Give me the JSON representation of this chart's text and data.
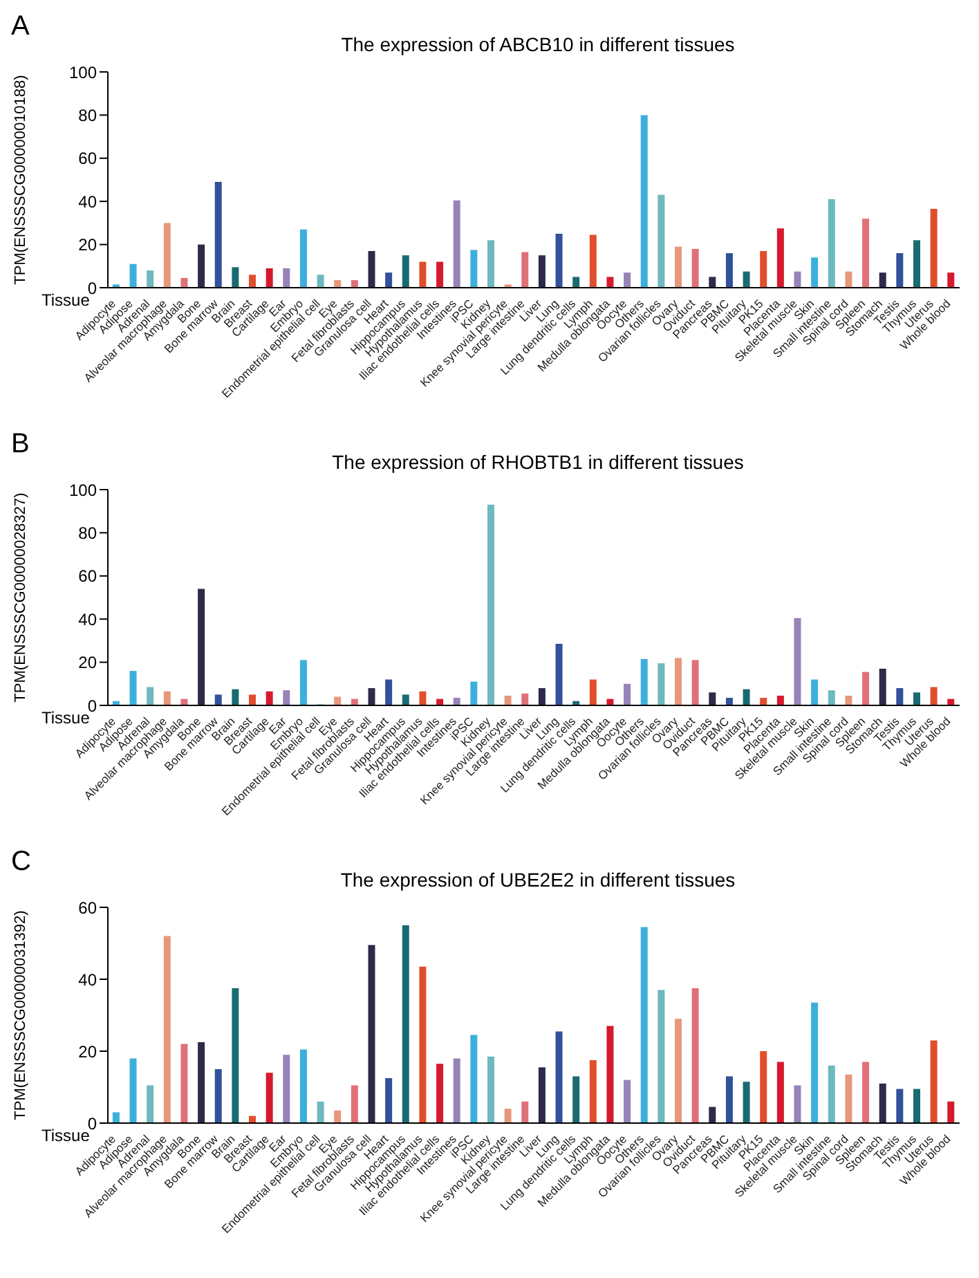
{
  "chart_data": [
    {
      "type": "bar",
      "title": "The expression of ABCB10 in different tissues",
      "xlabel": "Tissue",
      "ylabel": "TPM(ENSSSCG00000010188)",
      "annotations": [
        "A"
      ],
      "categories": [
        "Adipocyte",
        "Adipose",
        "Adrenal",
        "Alveolar macrophage",
        "Amygdala",
        "Bone",
        "Bone marrow",
        "Brain",
        "Breast",
        "Cartilage",
        "Ear",
        "Embryo",
        "Endometrial epithelial cell",
        "Eye",
        "Fetal fibroblasts",
        "Granulosa cell",
        "Heart",
        "Hippocampus",
        "Hypothalamus",
        "Iliac endothelial cells",
        "Intestines",
        "iPSC",
        "Kidney",
        "Knee synovial pericyte",
        "Large intestine",
        "Liver",
        "Lung",
        "Lung dendritic cells",
        "Lymph",
        "Medulla oblongata",
        "Oocyte",
        "Others",
        "Ovarian follicles",
        "Ovary",
        "Oviduct",
        "Pancreas",
        "PBMC",
        "Pituitary",
        "PK15",
        "Placenta",
        "Skeletal muscle",
        "Skin",
        "Small intestine",
        "Spinal cord",
        "Spleen",
        "Stomach",
        "Testis",
        "Thymus",
        "Uterus",
        "Whole blood"
      ],
      "values": [
        1.5,
        11,
        8,
        30,
        4.5,
        20,
        49,
        9.5,
        6,
        9,
        9,
        27,
        6,
        3.5,
        3.5,
        17,
        7,
        15,
        12,
        12,
        40.5,
        17.5,
        22,
        1.5,
        16.5,
        15,
        25,
        5,
        24.5,
        5,
        7,
        80,
        43,
        19,
        18,
        5,
        16,
        7.5,
        17,
        27.5,
        7.5,
        14,
        41,
        7.5,
        32,
        7,
        16,
        22,
        36.5,
        7
      ],
      "colors": [
        "#3cb0dc",
        "#3cb0dc",
        "#6db9bf",
        "#e8977a",
        "#e07078",
        "#2d2a4a",
        "#33509a",
        "#1a6b70",
        "#e04e2c",
        "#d7192d",
        "#9683b8",
        "#3cb0dc",
        "#6db9bf",
        "#e8977a",
        "#e07078",
        "#2d2a4a",
        "#33509a",
        "#1a6b70",
        "#e04e2c",
        "#d7192d",
        "#9683b8",
        "#3cb0dc",
        "#6db9bf",
        "#e8977a",
        "#e07078",
        "#2d2a4a",
        "#33509a",
        "#1a6b70",
        "#e04e2c",
        "#d7192d",
        "#9683b8",
        "#3cb0dc",
        "#6db9bf",
        "#e8977a",
        "#e07078",
        "#2d2a4a",
        "#33509a",
        "#1a6b70",
        "#e04e2c",
        "#d7192d",
        "#9683b8",
        "#3cb0dc",
        "#6db9bf",
        "#e8977a",
        "#e07078",
        "#2d2a4a",
        "#33509a",
        "#1a6b70",
        "#e04e2c",
        "#d7192d"
      ],
      "ylim": [
        0,
        100
      ],
      "yticks": [
        0,
        20,
        40,
        60,
        80,
        100
      ]
    },
    {
      "type": "bar",
      "title": "The expression of RHOBTB1 in different tissues",
      "xlabel": "Tissue",
      "ylabel": "TPM(ENSSSCG00000028327)",
      "annotations": [
        "B"
      ],
      "categories": [
        "Adipocyte",
        "Adipose",
        "Adrenal",
        "Alveolar macrophage",
        "Amygdala",
        "Bone",
        "Bone marrow",
        "Brain",
        "Breast",
        "Cartilage",
        "Ear",
        "Embryo",
        "Endometrial epithelial cell",
        "Eye",
        "Fetal fibroblasts",
        "Granulosa cell",
        "Heart",
        "Hippocampus",
        "Hypothalamus",
        "Iliac endothelial cells",
        "Intestines",
        "iPSC",
        "Kidney",
        "Knee synovial pericyte",
        "Large intestine",
        "Liver",
        "Lung",
        "Lung dendritic cells",
        "Lymph",
        "Medulla oblongata",
        "Oocyte",
        "Others",
        "Ovarian follicles",
        "Ovary",
        "Oviduct",
        "Pancreas",
        "PBMC",
        "Pituitary",
        "PK15",
        "Placenta",
        "Skeletal muscle",
        "Skin",
        "Small intestine",
        "Spinal cord",
        "Spleen",
        "Stomach",
        "Testis",
        "Thymus",
        "Uterus",
        "Whole blood"
      ],
      "values": [
        2,
        16,
        8.5,
        6.5,
        3,
        54,
        5,
        7.5,
        5,
        6.5,
        7,
        21,
        0.5,
        4,
        3,
        8,
        12,
        5,
        6.5,
        3,
        3.5,
        11,
        93,
        4.5,
        5.5,
        8,
        28.5,
        2,
        12,
        3,
        10,
        21.5,
        19.5,
        22,
        21,
        6,
        3.5,
        7.5,
        3.5,
        4.5,
        40.5,
        12,
        7,
        4.5,
        15.5,
        17,
        8,
        6,
        8.5,
        3
      ],
      "colors": [
        "#3cb0dc",
        "#3cb0dc",
        "#6db9bf",
        "#e8977a",
        "#e07078",
        "#2d2a4a",
        "#33509a",
        "#1a6b70",
        "#e04e2c",
        "#d7192d",
        "#9683b8",
        "#3cb0dc",
        "#6db9bf",
        "#e8977a",
        "#e07078",
        "#2d2a4a",
        "#33509a",
        "#1a6b70",
        "#e04e2c",
        "#d7192d",
        "#9683b8",
        "#3cb0dc",
        "#6db9bf",
        "#e8977a",
        "#e07078",
        "#2d2a4a",
        "#33509a",
        "#1a6b70",
        "#e04e2c",
        "#d7192d",
        "#9683b8",
        "#3cb0dc",
        "#6db9bf",
        "#e8977a",
        "#e07078",
        "#2d2a4a",
        "#33509a",
        "#1a6b70",
        "#e04e2c",
        "#d7192d",
        "#9683b8",
        "#3cb0dc",
        "#6db9bf",
        "#e8977a",
        "#e07078",
        "#2d2a4a",
        "#33509a",
        "#1a6b70",
        "#e04e2c",
        "#d7192d"
      ],
      "ylim": [
        0,
        100
      ],
      "yticks": [
        0,
        20,
        40,
        60,
        80,
        100
      ]
    },
    {
      "type": "bar",
      "title": "The expression of UBE2E2 in different tissues",
      "xlabel": "Tissue",
      "ylabel": "TPM(ENSSSCG00000031392)",
      "annotations": [
        "C"
      ],
      "categories": [
        "Adipocyte",
        "Adipose",
        "Adrenal",
        "Alveolar macrophage",
        "Amygdala",
        "Bone",
        "Bone marrow",
        "Brain",
        "Breast",
        "Cartilage",
        "Ear",
        "Embryo",
        "Endometrial epithelial cell",
        "Eye",
        "Fetal fibroblasts",
        "Granulosa cell",
        "Heart",
        "Hippocampus",
        "Hypothalamus",
        "Iliac endothelial cells",
        "Intestines",
        "iPSC",
        "Kidney",
        "Knee synovial pericyte",
        "Large intestine",
        "Liver",
        "Lung",
        "Lung dendritic cells",
        "Lymph",
        "Medulla oblongata",
        "Oocyte",
        "Others",
        "Ovarian follicles",
        "Ovary",
        "Oviduct",
        "Pancreas",
        "PBMC",
        "Pituitary",
        "PK15",
        "Placenta",
        "Skeletal muscle",
        "Skin",
        "Small intestine",
        "Spinal cord",
        "Spleen",
        "Stomach",
        "Testis",
        "Thymus",
        "Uterus",
        "Whole blood"
      ],
      "values": [
        3,
        18,
        10.5,
        52,
        22,
        22.5,
        15,
        37.5,
        2,
        14,
        19,
        20.5,
        6,
        3.5,
        10.5,
        49.5,
        12.5,
        55,
        43.5,
        16.5,
        18,
        24.5,
        18.5,
        4,
        6,
        15.5,
        25.5,
        13,
        17.5,
        27,
        12,
        54.5,
        37,
        29,
        37.5,
        4.5,
        13,
        11.5,
        20,
        17,
        10.5,
        33.5,
        16,
        13.5,
        17,
        11,
        9.5,
        9.5,
        23,
        6
      ],
      "colors": [
        "#3cb0dc",
        "#3cb0dc",
        "#6db9bf",
        "#e8977a",
        "#e07078",
        "#2d2a4a",
        "#33509a",
        "#1a6b70",
        "#e04e2c",
        "#d7192d",
        "#9683b8",
        "#3cb0dc",
        "#6db9bf",
        "#e8977a",
        "#e07078",
        "#2d2a4a",
        "#33509a",
        "#1a6b70",
        "#e04e2c",
        "#d7192d",
        "#9683b8",
        "#3cb0dc",
        "#6db9bf",
        "#e8977a",
        "#e07078",
        "#2d2a4a",
        "#33509a",
        "#1a6b70",
        "#e04e2c",
        "#d7192d",
        "#9683b8",
        "#3cb0dc",
        "#6db9bf",
        "#e8977a",
        "#e07078",
        "#2d2a4a",
        "#33509a",
        "#1a6b70",
        "#e04e2c",
        "#d7192d",
        "#9683b8",
        "#3cb0dc",
        "#6db9bf",
        "#e8977a",
        "#e07078",
        "#2d2a4a",
        "#33509a",
        "#1a6b70",
        "#e04e2c",
        "#d7192d"
      ],
      "ylim": [
        0,
        60
      ],
      "yticks": [
        0,
        20,
        40,
        60
      ]
    }
  ]
}
